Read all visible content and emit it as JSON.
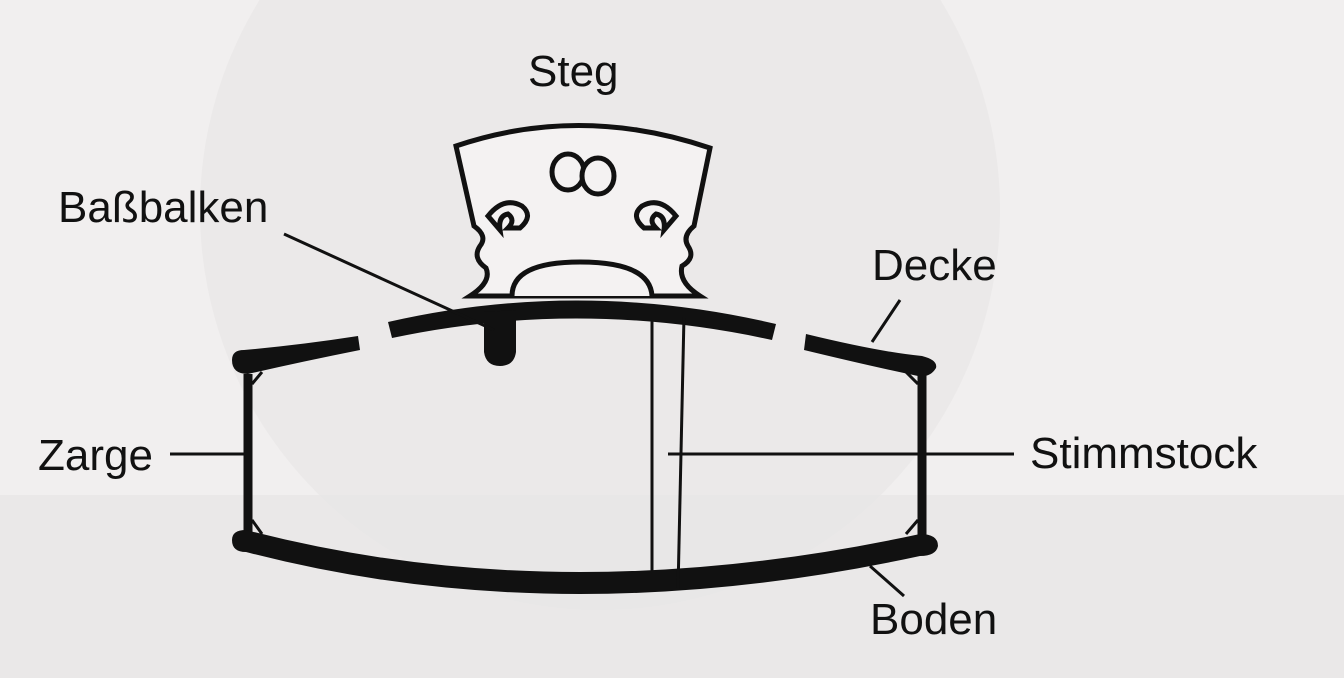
{
  "diagram": {
    "labels": {
      "steg": "Steg",
      "bassbalken": "Baßbalken",
      "decke": "Decke",
      "zarge": "Zarge",
      "stimmstock": "Stimmstock",
      "boden": "Boden"
    }
  },
  "colors": {
    "background": "#efeded",
    "ink": "#111111",
    "paper_shadow": "#e3e1e1"
  }
}
